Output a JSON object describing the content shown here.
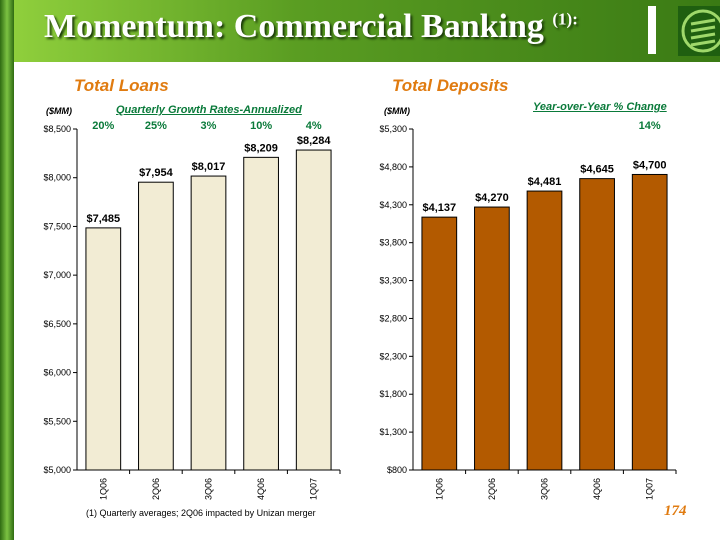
{
  "title": {
    "text": "Momentum:  Commercial Banking ",
    "sup": "(1):"
  },
  "page_number": "174",
  "footnote": "(1) Quarterly averages; 2Q06 impacted by Unizan merger",
  "colors": {
    "accent": "#e07b10",
    "green": "#0a7a3a",
    "loans_bar": "#f2ecd4",
    "deposits_bar": "#b35a00"
  },
  "chart_data": [
    {
      "type": "bar",
      "title": "Total Loans",
      "unit_label": "($MM)",
      "annotation_title": "Quarterly Growth Rates-Annualized",
      "growth_rates": [
        "20%",
        "25%",
        "3%",
        "10%",
        "4%"
      ],
      "categories": [
        "1Q06",
        "2Q06",
        "3Q06",
        "4Q06",
        "1Q07"
      ],
      "values": [
        7485,
        7954,
        8017,
        8209,
        8284
      ],
      "value_labels": [
        "$7,485",
        "$7,954",
        "$8,017",
        "$8,209",
        "$8,284"
      ],
      "ylim": [
        5000,
        8500
      ],
      "yticks": [
        5000,
        5500,
        6000,
        6500,
        7000,
        7500,
        8000,
        8500
      ],
      "ytick_labels": [
        "$5,000",
        "$5,500",
        "$6,000",
        "$6,500",
        "$7,000",
        "$7,500",
        "$8,000",
        "$8,500"
      ]
    },
    {
      "type": "bar",
      "title": "Total Deposits",
      "unit_label": "($MM)",
      "annotation_title": "Year-over-Year % Change",
      "growth_rates": [
        "14%"
      ],
      "categories": [
        "1Q06",
        "2Q06",
        "3Q06",
        "4Q06",
        "1Q07"
      ],
      "values": [
        4137,
        4270,
        4481,
        4645,
        4700
      ],
      "value_labels": [
        "$4,137",
        "$4,270",
        "$4,481",
        "$4,645",
        "$4,700"
      ],
      "ylim": [
        800,
        5300
      ],
      "yticks": [
        800,
        1300,
        1800,
        2300,
        2800,
        3300,
        3800,
        4300,
        4800,
        5300
      ],
      "ytick_labels": [
        "$800",
        "$1,300",
        "$1,800",
        "$2,300",
        "$2,800",
        "$3,300",
        "$3,800",
        "$4,300",
        "$4,800",
        "$5,300"
      ]
    }
  ]
}
